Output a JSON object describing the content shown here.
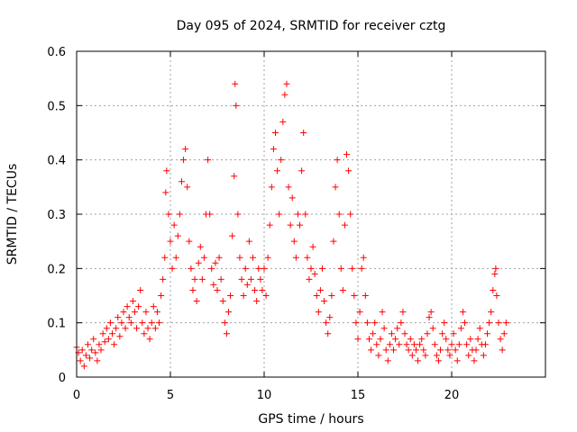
{
  "chart_data": {
    "type": "scatter",
    "title": "Day 095 of 2024, SRMTID for receiver cztg",
    "xlabel": "GPS time / hours",
    "ylabel": "SRMTID / TECUs",
    "xlim": [
      0,
      25
    ],
    "ylim": [
      0,
      0.6
    ],
    "x_ticks": [
      0,
      5,
      10,
      15,
      20
    ],
    "x_tick_labels": [
      "0",
      "5",
      "10",
      "15",
      "20"
    ],
    "y_ticks": [
      0,
      0.1,
      0.2,
      0.3,
      0.4,
      0.5,
      0.6
    ],
    "y_tick_labels": [
      "0",
      "0.1",
      "0.2",
      "0.3",
      "0.4",
      "0.5",
      "0.6"
    ],
    "grid": true,
    "marker": "plus",
    "color": "#ff0000",
    "series": [
      {
        "name": "SRMTID",
        "points": [
          [
            0.0,
            0.055
          ],
          [
            0.1,
            0.045
          ],
          [
            0.2,
            0.03
          ],
          [
            0.3,
            0.05
          ],
          [
            0.4,
            0.02
          ],
          [
            0.5,
            0.04
          ],
          [
            0.6,
            0.06
          ],
          [
            0.7,
            0.035
          ],
          [
            0.8,
            0.05
          ],
          [
            0.9,
            0.07
          ],
          [
            1.0,
            0.045
          ],
          [
            1.1,
            0.03
          ],
          [
            1.2,
            0.06
          ],
          [
            1.3,
            0.05
          ],
          [
            1.4,
            0.08
          ],
          [
            1.5,
            0.065
          ],
          [
            1.6,
            0.09
          ],
          [
            1.7,
            0.07
          ],
          [
            1.8,
            0.1
          ],
          [
            1.9,
            0.08
          ],
          [
            2.0,
            0.06
          ],
          [
            2.1,
            0.09
          ],
          [
            2.2,
            0.11
          ],
          [
            2.3,
            0.075
          ],
          [
            2.4,
            0.1
          ],
          [
            2.5,
            0.12
          ],
          [
            2.6,
            0.09
          ],
          [
            2.7,
            0.13
          ],
          [
            2.8,
            0.11
          ],
          [
            2.9,
            0.1
          ],
          [
            3.0,
            0.14
          ],
          [
            3.1,
            0.12
          ],
          [
            3.2,
            0.09
          ],
          [
            3.3,
            0.13
          ],
          [
            3.4,
            0.16
          ],
          [
            3.5,
            0.1
          ],
          [
            3.6,
            0.08
          ],
          [
            3.7,
            0.12
          ],
          [
            3.8,
            0.09
          ],
          [
            3.9,
            0.07
          ],
          [
            4.0,
            0.1
          ],
          [
            4.1,
            0.13
          ],
          [
            4.2,
            0.09
          ],
          [
            4.3,
            0.12
          ],
          [
            4.4,
            0.1
          ],
          [
            4.5,
            0.15
          ],
          [
            4.6,
            0.18
          ],
          [
            4.7,
            0.22
          ],
          [
            4.75,
            0.34
          ],
          [
            4.8,
            0.38
          ],
          [
            4.9,
            0.3
          ],
          [
            5.0,
            0.25
          ],
          [
            5.1,
            0.2
          ],
          [
            5.2,
            0.28
          ],
          [
            5.3,
            0.22
          ],
          [
            5.4,
            0.26
          ],
          [
            5.5,
            0.3
          ],
          [
            5.6,
            0.36
          ],
          [
            5.7,
            0.4
          ],
          [
            5.8,
            0.42
          ],
          [
            5.9,
            0.35
          ],
          [
            6.0,
            0.25
          ],
          [
            6.1,
            0.2
          ],
          [
            6.2,
            0.16
          ],
          [
            6.3,
            0.18
          ],
          [
            6.4,
            0.14
          ],
          [
            6.5,
            0.21
          ],
          [
            6.6,
            0.24
          ],
          [
            6.7,
            0.18
          ],
          [
            6.8,
            0.22
          ],
          [
            6.9,
            0.3
          ],
          [
            7.0,
            0.4
          ],
          [
            7.1,
            0.3
          ],
          [
            7.2,
            0.2
          ],
          [
            7.3,
            0.17
          ],
          [
            7.4,
            0.21
          ],
          [
            7.5,
            0.16
          ],
          [
            7.6,
            0.22
          ],
          [
            7.7,
            0.18
          ],
          [
            7.8,
            0.14
          ],
          [
            7.9,
            0.1
          ],
          [
            8.0,
            0.08
          ],
          [
            8.1,
            0.12
          ],
          [
            8.2,
            0.15
          ],
          [
            8.3,
            0.26
          ],
          [
            8.4,
            0.37
          ],
          [
            8.45,
            0.54
          ],
          [
            8.5,
            0.5
          ],
          [
            8.6,
            0.3
          ],
          [
            8.7,
            0.22
          ],
          [
            8.8,
            0.18
          ],
          [
            8.9,
            0.15
          ],
          [
            9.0,
            0.2
          ],
          [
            9.1,
            0.17
          ],
          [
            9.2,
            0.25
          ],
          [
            9.3,
            0.18
          ],
          [
            9.4,
            0.22
          ],
          [
            9.5,
            0.16
          ],
          [
            9.6,
            0.14
          ],
          [
            9.7,
            0.2
          ],
          [
            9.8,
            0.18
          ],
          [
            9.9,
            0.16
          ],
          [
            10.0,
            0.2
          ],
          [
            10.1,
            0.15
          ],
          [
            10.2,
            0.22
          ],
          [
            10.3,
            0.28
          ],
          [
            10.4,
            0.35
          ],
          [
            10.5,
            0.42
          ],
          [
            10.6,
            0.45
          ],
          [
            10.7,
            0.38
          ],
          [
            10.8,
            0.3
          ],
          [
            10.9,
            0.4
          ],
          [
            11.0,
            0.47
          ],
          [
            11.1,
            0.52
          ],
          [
            11.2,
            0.54
          ],
          [
            11.3,
            0.35
          ],
          [
            11.4,
            0.28
          ],
          [
            11.5,
            0.33
          ],
          [
            11.6,
            0.25
          ],
          [
            11.7,
            0.22
          ],
          [
            11.8,
            0.3
          ],
          [
            11.9,
            0.28
          ],
          [
            12.0,
            0.38
          ],
          [
            12.1,
            0.45
          ],
          [
            12.2,
            0.3
          ],
          [
            12.3,
            0.22
          ],
          [
            12.4,
            0.18
          ],
          [
            12.5,
            0.2
          ],
          [
            12.6,
            0.24
          ],
          [
            12.7,
            0.19
          ],
          [
            12.8,
            0.15
          ],
          [
            12.9,
            0.12
          ],
          [
            13.0,
            0.16
          ],
          [
            13.1,
            0.2
          ],
          [
            13.2,
            0.14
          ],
          [
            13.3,
            0.1
          ],
          [
            13.4,
            0.08
          ],
          [
            13.5,
            0.11
          ],
          [
            13.6,
            0.15
          ],
          [
            13.7,
            0.25
          ],
          [
            13.8,
            0.35
          ],
          [
            13.9,
            0.4
          ],
          [
            14.0,
            0.3
          ],
          [
            14.1,
            0.2
          ],
          [
            14.2,
            0.16
          ],
          [
            14.3,
            0.28
          ],
          [
            14.4,
            0.41
          ],
          [
            14.5,
            0.38
          ],
          [
            14.6,
            0.3
          ],
          [
            14.7,
            0.2
          ],
          [
            14.8,
            0.15
          ],
          [
            14.9,
            0.1
          ],
          [
            15.0,
            0.07
          ],
          [
            15.1,
            0.12
          ],
          [
            15.2,
            0.2
          ],
          [
            15.3,
            0.22
          ],
          [
            15.4,
            0.15
          ],
          [
            15.5,
            0.1
          ],
          [
            15.6,
            0.07
          ],
          [
            15.7,
            0.05
          ],
          [
            15.8,
            0.08
          ],
          [
            15.9,
            0.1
          ],
          [
            16.0,
            0.06
          ],
          [
            16.1,
            0.04
          ],
          [
            16.2,
            0.07
          ],
          [
            16.3,
            0.12
          ],
          [
            16.4,
            0.09
          ],
          [
            16.5,
            0.05
          ],
          [
            16.6,
            0.03
          ],
          [
            16.7,
            0.06
          ],
          [
            16.8,
            0.08
          ],
          [
            16.9,
            0.05
          ],
          [
            17.0,
            0.07
          ],
          [
            17.1,
            0.09
          ],
          [
            17.2,
            0.06
          ],
          [
            17.3,
            0.1
          ],
          [
            17.4,
            0.12
          ],
          [
            17.5,
            0.08
          ],
          [
            17.6,
            0.06
          ],
          [
            17.7,
            0.05
          ],
          [
            17.8,
            0.07
          ],
          [
            17.9,
            0.04
          ],
          [
            18.0,
            0.06
          ],
          [
            18.1,
            0.05
          ],
          [
            18.2,
            0.03
          ],
          [
            18.3,
            0.06
          ],
          [
            18.4,
            0.07
          ],
          [
            18.5,
            0.05
          ],
          [
            18.6,
            0.04
          ],
          [
            18.7,
            0.08
          ],
          [
            18.8,
            0.11
          ],
          [
            18.9,
            0.12
          ],
          [
            19.0,
            0.09
          ],
          [
            19.1,
            0.06
          ],
          [
            19.2,
            0.04
          ],
          [
            19.3,
            0.03
          ],
          [
            19.4,
            0.05
          ],
          [
            19.5,
            0.08
          ],
          [
            19.6,
            0.1
          ],
          [
            19.7,
            0.07
          ],
          [
            19.8,
            0.05
          ],
          [
            19.9,
            0.04
          ],
          [
            20.0,
            0.06
          ],
          [
            20.1,
            0.08
          ],
          [
            20.2,
            0.05
          ],
          [
            20.3,
            0.03
          ],
          [
            20.4,
            0.06
          ],
          [
            20.5,
            0.09
          ],
          [
            20.6,
            0.12
          ],
          [
            20.7,
            0.1
          ],
          [
            20.8,
            0.06
          ],
          [
            20.9,
            0.04
          ],
          [
            21.0,
            0.07
          ],
          [
            21.1,
            0.05
          ],
          [
            21.2,
            0.03
          ],
          [
            21.3,
            0.05
          ],
          [
            21.4,
            0.07
          ],
          [
            21.5,
            0.09
          ],
          [
            21.6,
            0.06
          ],
          [
            21.7,
            0.04
          ],
          [
            21.8,
            0.06
          ],
          [
            21.9,
            0.08
          ],
          [
            22.0,
            0.1
          ],
          [
            22.1,
            0.12
          ],
          [
            22.2,
            0.16
          ],
          [
            22.3,
            0.19
          ],
          [
            22.35,
            0.2
          ],
          [
            22.4,
            0.15
          ],
          [
            22.5,
            0.1
          ],
          [
            22.6,
            0.07
          ],
          [
            22.7,
            0.05
          ],
          [
            22.8,
            0.08
          ],
          [
            22.9,
            0.1
          ]
        ]
      }
    ]
  }
}
